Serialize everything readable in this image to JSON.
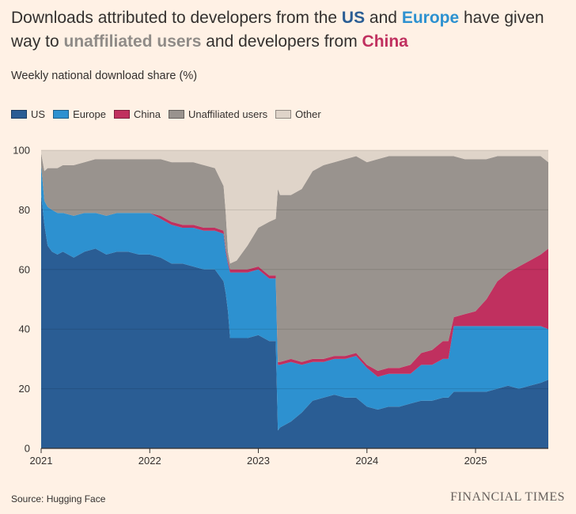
{
  "header": {
    "title_parts": [
      {
        "text": "Downloads attributed to developers from the ",
        "style": "plain"
      },
      {
        "text": "US",
        "style": "us"
      },
      {
        "text": " and ",
        "style": "plain"
      },
      {
        "text": "Europe",
        "style": "eu"
      },
      {
        "text": " have given way to ",
        "style": "plain"
      },
      {
        "text": "unaffiliated users",
        "style": "un"
      },
      {
        "text": " and developers from ",
        "style": "plain"
      },
      {
        "text": "China",
        "style": "cn"
      }
    ],
    "subtitle": "Weekly national download share (%)"
  },
  "footer": {
    "source": "Source: Hugging Face",
    "brand": "FINANCIAL TIMES"
  },
  "chart_data": {
    "type": "area",
    "stacked": true,
    "ylim": [
      0,
      100
    ],
    "yticks": [
      0,
      20,
      40,
      60,
      80,
      100
    ],
    "xlim": [
      2021.0,
      2025.67
    ],
    "xticks": [
      2021,
      2022,
      2023,
      2024,
      2025
    ],
    "xtick_labels": [
      "2021",
      "2022",
      "2023",
      "2024",
      "2025"
    ],
    "grid": true,
    "legend_position": "top-left",
    "x": [
      2021.0,
      2021.03,
      2021.06,
      2021.1,
      2021.15,
      2021.2,
      2021.3,
      2021.4,
      2021.5,
      2021.6,
      2021.7,
      2021.8,
      2021.9,
      2022.0,
      2022.1,
      2022.2,
      2022.3,
      2022.4,
      2022.5,
      2022.6,
      2022.68,
      2022.7,
      2022.72,
      2022.74,
      2022.8,
      2022.9,
      2023.0,
      2023.1,
      2023.16,
      2023.18,
      2023.2,
      2023.3,
      2023.4,
      2023.5,
      2023.6,
      2023.7,
      2023.8,
      2023.9,
      2024.0,
      2024.1,
      2024.2,
      2024.3,
      2024.4,
      2024.5,
      2024.6,
      2024.7,
      2024.75,
      2024.8,
      2024.9,
      2025.0,
      2025.1,
      2025.2,
      2025.3,
      2025.4,
      2025.5,
      2025.6,
      2025.67
    ],
    "series": [
      {
        "name": "US",
        "color": "#2a5d94",
        "values": [
          85,
          75,
          68,
          66,
          65,
          66,
          64,
          66,
          67,
          65,
          66,
          66,
          65,
          65,
          64,
          62,
          62,
          61,
          60,
          60,
          56,
          52,
          46,
          37,
          37,
          37,
          38,
          36,
          36,
          6,
          7,
          9,
          12,
          16,
          17,
          18,
          17,
          17,
          14,
          13,
          14,
          14,
          15,
          16,
          16,
          17,
          17,
          19,
          19,
          19,
          19,
          20,
          21,
          20,
          21,
          22,
          23
        ]
      },
      {
        "name": "Europe",
        "color": "#2d91d0",
        "values": [
          10,
          8,
          13,
          14,
          14,
          13,
          14,
          13,
          12,
          13,
          13,
          13,
          14,
          14,
          13,
          13,
          12,
          13,
          13,
          13,
          16,
          14,
          16,
          22,
          22,
          22,
          22,
          21,
          21,
          22,
          21,
          20,
          16,
          13,
          12,
          12,
          13,
          14,
          13,
          11,
          11,
          11,
          10,
          12,
          12,
          13,
          13,
          22,
          22,
          22,
          22,
          21,
          20,
          21,
          20,
          19,
          17
        ]
      },
      {
        "name": "China",
        "color": "#c0305f",
        "values": [
          0,
          0,
          0,
          0,
          0,
          0,
          0,
          0,
          0,
          0,
          0,
          0,
          0,
          0,
          1,
          1,
          1,
          1,
          1,
          1,
          1,
          1,
          1,
          1,
          1,
          1,
          1,
          1,
          1,
          1,
          1,
          1,
          1,
          1,
          1,
          1,
          1,
          1,
          1,
          2,
          2,
          2,
          3,
          4,
          5,
          6,
          6,
          3,
          4,
          5,
          9,
          15,
          18,
          20,
          22,
          24,
          27
        ]
      },
      {
        "name": "Unaffiliated users",
        "color": "#99938e",
        "values": [
          4,
          10,
          13,
          14,
          15,
          16,
          17,
          17,
          18,
          19,
          18,
          18,
          18,
          18,
          19,
          20,
          21,
          21,
          21,
          20,
          15,
          12,
          3,
          2,
          3,
          8,
          13,
          18,
          19,
          58,
          56,
          55,
          58,
          63,
          65,
          65,
          66,
          66,
          68,
          71,
          71,
          71,
          70,
          66,
          65,
          62,
          62,
          54,
          52,
          51,
          47,
          42,
          39,
          37,
          35,
          33,
          29
        ]
      },
      {
        "name": "Other",
        "color": "#dfd4c9",
        "values": [
          1,
          7,
          6,
          6,
          6,
          5,
          5,
          4,
          3,
          3,
          3,
          3,
          3,
          3,
          3,
          4,
          4,
          4,
          5,
          6,
          12,
          21,
          34,
          38,
          37,
          32,
          26,
          24,
          23,
          13,
          15,
          15,
          13,
          7,
          5,
          4,
          3,
          2,
          4,
          3,
          2,
          2,
          2,
          2,
          2,
          2,
          2,
          2,
          3,
          3,
          3,
          2,
          2,
          2,
          2,
          2,
          4
        ]
      }
    ]
  }
}
